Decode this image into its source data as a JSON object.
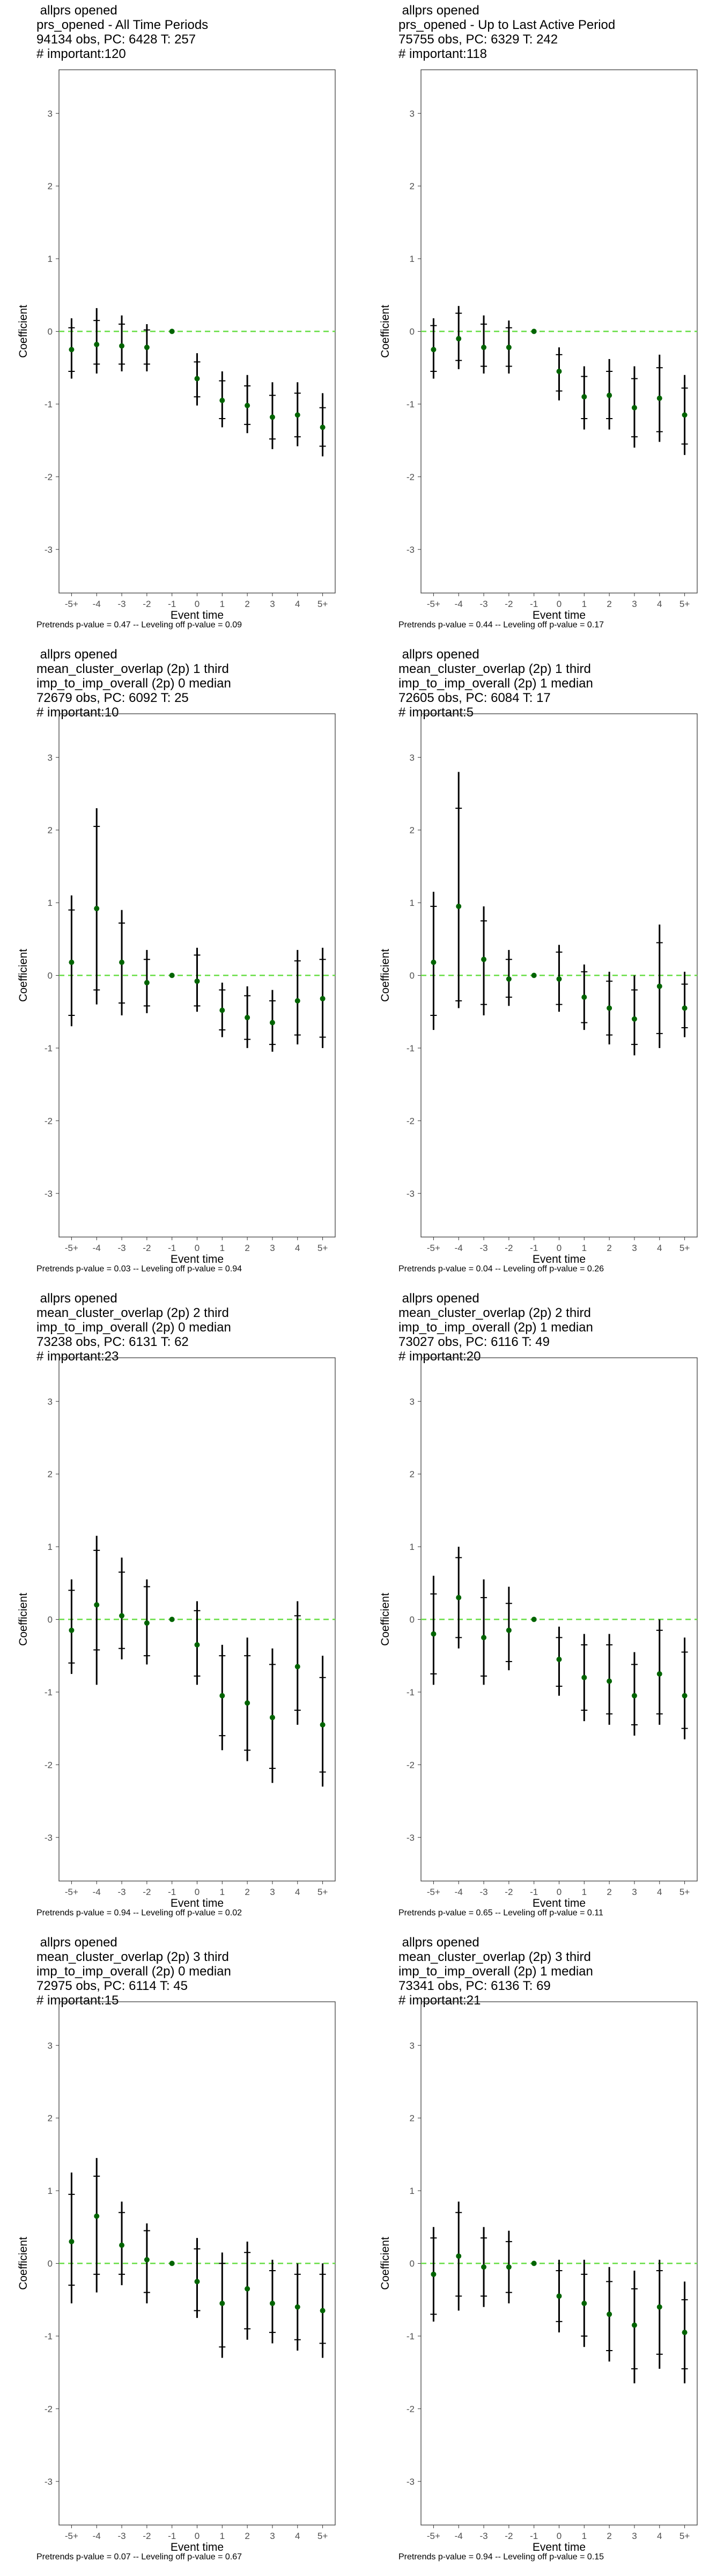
{
  "chart_data": [
    {
      "type": "scatter",
      "title_lines": [
        "allprs opened",
        "prs_opened - All Time Periods",
        "94134 obs, PC: 6428 T: 257",
        "# important:120"
      ],
      "xlabel": "Event time",
      "ylabel": "Coefficient",
      "categories": [
        "-5+",
        "-4",
        "-3",
        "-2",
        "-1",
        "0",
        "1",
        "2",
        "3",
        "4",
        "5+"
      ],
      "ylim": [
        -3.6,
        3.6
      ],
      "yticks": [
        -3,
        -2,
        -1,
        0,
        1,
        2,
        3
      ],
      "coef": [
        -0.25,
        -0.18,
        -0.2,
        -0.22,
        0.0,
        -0.65,
        -0.95,
        -1.02,
        -1.18,
        -1.15,
        -1.32
      ],
      "ci_low": [
        -0.65,
        -0.58,
        -0.55,
        -0.55,
        0.0,
        -1.02,
        -1.32,
        -1.4,
        -1.62,
        -1.58,
        -1.72
      ],
      "ci_high": [
        0.18,
        0.32,
        0.22,
        0.1,
        0.0,
        -0.3,
        -0.55,
        -0.6,
        -0.7,
        -0.7,
        -0.85
      ],
      "inner_low": [
        -0.55,
        -0.45,
        -0.45,
        -0.45,
        0.0,
        -0.9,
        -1.2,
        -1.28,
        -1.48,
        -1.45,
        -1.58
      ],
      "inner_high": [
        0.05,
        0.15,
        0.1,
        0.02,
        0.0,
        -0.42,
        -0.68,
        -0.75,
        -0.88,
        -0.85,
        -1.05
      ],
      "footer": "Pretrends p-value = 0.47 -- Leveling off p-value = 0.09"
    },
    {
      "type": "scatter",
      "title_lines": [
        "allprs opened",
        "prs_opened - Up to Last Active Period",
        "75755 obs, PC: 6329 T: 242",
        "# important:118"
      ],
      "xlabel": "Event time",
      "ylabel": "Coefficient",
      "categories": [
        "-5+",
        "-4",
        "-3",
        "-2",
        "-1",
        "0",
        "1",
        "2",
        "3",
        "4",
        "5+"
      ],
      "ylim": [
        -3.6,
        3.6
      ],
      "yticks": [
        -3,
        -2,
        -1,
        0,
        1,
        2,
        3
      ],
      "coef": [
        -0.25,
        -0.1,
        -0.22,
        -0.22,
        0.0,
        -0.55,
        -0.9,
        -0.88,
        -1.05,
        -0.92,
        -1.15
      ],
      "ci_low": [
        -0.65,
        -0.52,
        -0.58,
        -0.58,
        0.0,
        -0.95,
        -1.35,
        -1.35,
        -1.6,
        -1.52,
        -1.7
      ],
      "ci_high": [
        0.18,
        0.35,
        0.22,
        0.15,
        0.0,
        -0.22,
        -0.48,
        -0.38,
        -0.48,
        -0.32,
        -0.6
      ],
      "inner_low": [
        -0.55,
        -0.4,
        -0.48,
        -0.48,
        0.0,
        -0.82,
        -1.2,
        -1.2,
        -1.45,
        -1.38,
        -1.55
      ],
      "inner_high": [
        0.08,
        0.25,
        0.1,
        0.05,
        0.0,
        -0.32,
        -0.62,
        -0.55,
        -0.65,
        -0.5,
        -0.78
      ],
      "footer": "Pretrends p-value = 0.44 -- Leveling off p-value = 0.17"
    },
    {
      "type": "scatter",
      "title_lines": [
        "allprs opened",
        "mean_cluster_overlap (2p) 1 third",
        "imp_to_imp_overall (2p) 0 median",
        "72679 obs, PC: 6092 T: 25",
        "# important:10"
      ],
      "xlabel": "Event time",
      "ylabel": "Coefficient",
      "categories": [
        "-5+",
        "-4",
        "-3",
        "-2",
        "-1",
        "0",
        "1",
        "2",
        "3",
        "4",
        "5+"
      ],
      "ylim": [
        -3.6,
        3.6
      ],
      "yticks": [
        -3,
        -2,
        -1,
        0,
        1,
        2,
        3
      ],
      "coef": [
        0.18,
        0.92,
        0.18,
        -0.1,
        0.0,
        -0.08,
        -0.48,
        -0.58,
        -0.65,
        -0.35,
        -0.32
      ],
      "ci_low": [
        -0.7,
        -0.4,
        -0.55,
        -0.52,
        0.0,
        -0.5,
        -0.85,
        -1.0,
        -1.05,
        -0.95,
        -1.0
      ],
      "ci_high": [
        1.1,
        2.3,
        0.9,
        0.35,
        0.0,
        0.38,
        -0.1,
        -0.15,
        -0.2,
        0.35,
        0.38
      ],
      "inner_low": [
        -0.55,
        -0.2,
        -0.38,
        -0.42,
        0.0,
        -0.42,
        -0.75,
        -0.88,
        -0.95,
        -0.82,
        -0.85
      ],
      "inner_high": [
        0.9,
        2.05,
        0.72,
        0.22,
        0.0,
        0.28,
        -0.2,
        -0.28,
        -0.35,
        0.2,
        0.22
      ],
      "footer": "Pretrends p-value = 0.03 -- Leveling off p-value = 0.94"
    },
    {
      "type": "scatter",
      "title_lines": [
        "allprs opened",
        "mean_cluster_overlap (2p) 1 third",
        "imp_to_imp_overall (2p) 1 median",
        "72605 obs, PC: 6084 T: 17",
        "# important:5"
      ],
      "xlabel": "Event time",
      "ylabel": "Coefficient",
      "categories": [
        "-5+",
        "-4",
        "-3",
        "-2",
        "-1",
        "0",
        "1",
        "2",
        "3",
        "4",
        "5+"
      ],
      "ylim": [
        -3.6,
        3.6
      ],
      "yticks": [
        -3,
        -2,
        -1,
        0,
        1,
        2,
        3
      ],
      "coef": [
        0.18,
        0.95,
        0.22,
        -0.05,
        0.0,
        -0.05,
        -0.3,
        -0.45,
        -0.6,
        -0.15,
        -0.45
      ],
      "ci_low": [
        -0.75,
        -0.45,
        -0.55,
        -0.42,
        0.0,
        -0.5,
        -0.75,
        -0.95,
        -1.1,
        -1.0,
        -0.85
      ],
      "ci_high": [
        1.15,
        2.8,
        0.95,
        0.35,
        0.0,
        0.42,
        0.15,
        0.05,
        0.0,
        0.7,
        0.05
      ],
      "inner_low": [
        -0.55,
        -0.35,
        -0.4,
        -0.3,
        0.0,
        -0.4,
        -0.65,
        -0.82,
        -0.95,
        -0.8,
        -0.72
      ],
      "inner_high": [
        0.95,
        2.3,
        0.75,
        0.22,
        0.0,
        0.32,
        0.05,
        -0.08,
        -0.2,
        0.45,
        -0.12
      ],
      "footer": "Pretrends p-value = 0.04 -- Leveling off p-value = 0.26"
    },
    {
      "type": "scatter",
      "title_lines": [
        "allprs opened",
        "mean_cluster_overlap (2p) 2 third",
        "imp_to_imp_overall (2p) 0 median",
        "73238 obs, PC: 6131 T: 62",
        "# important:23"
      ],
      "xlabel": "Event time",
      "ylabel": "Coefficient",
      "categories": [
        "-5+",
        "-4",
        "-3",
        "-2",
        "-1",
        "0",
        "1",
        "2",
        "3",
        "4",
        "5+"
      ],
      "ylim": [
        -3.6,
        3.6
      ],
      "yticks": [
        -3,
        -2,
        -1,
        0,
        1,
        2,
        3
      ],
      "coef": [
        -0.15,
        0.2,
        0.05,
        -0.05,
        0.0,
        -0.35,
        -1.05,
        -1.15,
        -1.35,
        -0.65,
        -1.45
      ],
      "ci_low": [
        -0.75,
        -0.9,
        -0.55,
        -0.62,
        0.0,
        -0.9,
        -1.8,
        -1.95,
        -2.25,
        -1.45,
        -2.3
      ],
      "ci_high": [
        0.55,
        1.15,
        0.85,
        0.55,
        0.0,
        0.25,
        -0.35,
        -0.25,
        -0.4,
        0.25,
        -0.5
      ],
      "inner_low": [
        -0.6,
        -0.42,
        -0.4,
        -0.5,
        0.0,
        -0.78,
        -1.6,
        -1.8,
        -2.05,
        -1.25,
        -2.1
      ],
      "inner_high": [
        0.4,
        0.95,
        0.65,
        0.45,
        0.0,
        0.12,
        -0.5,
        -0.5,
        -0.62,
        0.05,
        -0.8
      ],
      "footer": "Pretrends p-value = 0.94 -- Leveling off p-value = 0.02"
    },
    {
      "type": "scatter",
      "title_lines": [
        "allprs opened",
        "mean_cluster_overlap (2p) 2 third",
        "imp_to_imp_overall (2p) 1 median",
        "73027 obs, PC: 6116 T: 49",
        "# important:20"
      ],
      "xlabel": "Event time",
      "ylabel": "Coefficient",
      "categories": [
        "-5+",
        "-4",
        "-3",
        "-2",
        "-1",
        "0",
        "1",
        "2",
        "3",
        "4",
        "5+"
      ],
      "ylim": [
        -3.6,
        3.6
      ],
      "yticks": [
        -3,
        -2,
        -1,
        0,
        1,
        2,
        3
      ],
      "coef": [
        -0.2,
        0.3,
        -0.25,
        -0.15,
        0.0,
        -0.55,
        -0.8,
        -0.85,
        -1.05,
        -0.75,
        -1.05
      ],
      "ci_low": [
        -0.9,
        -0.4,
        -0.9,
        -0.7,
        0.0,
        -1.05,
        -1.4,
        -1.45,
        -1.6,
        -1.45,
        -1.65
      ],
      "ci_high": [
        0.6,
        1.0,
        0.55,
        0.45,
        0.0,
        -0.1,
        -0.2,
        -0.2,
        -0.45,
        0.0,
        -0.25
      ],
      "inner_low": [
        -0.75,
        -0.25,
        -0.78,
        -0.58,
        0.0,
        -0.92,
        -1.25,
        -1.3,
        -1.45,
        -1.3,
        -1.5
      ],
      "inner_high": [
        0.35,
        0.85,
        0.3,
        0.22,
        0.0,
        -0.25,
        -0.35,
        -0.35,
        -0.62,
        -0.15,
        -0.45
      ],
      "footer": "Pretrends p-value = 0.65 -- Leveling off p-value = 0.11"
    },
    {
      "type": "scatter",
      "title_lines": [
        "allprs opened",
        "mean_cluster_overlap (2p) 3 third",
        "imp_to_imp_overall (2p) 0 median",
        "72975 obs, PC: 6114 T: 45",
        "# important:15"
      ],
      "xlabel": "Event time",
      "ylabel": "Coefficient",
      "categories": [
        "-5+",
        "-4",
        "-3",
        "-2",
        "-1",
        "0",
        "1",
        "2",
        "3",
        "4",
        "5+"
      ],
      "ylim": [
        -3.6,
        3.6
      ],
      "yticks": [
        -3,
        -2,
        -1,
        0,
        1,
        2,
        3
      ],
      "coef": [
        0.3,
        0.65,
        0.25,
        0.05,
        0.0,
        -0.25,
        -0.55,
        -0.35,
        -0.55,
        -0.6,
        -0.65
      ],
      "ci_low": [
        -0.55,
        -0.4,
        -0.3,
        -0.55,
        0.0,
        -0.75,
        -1.3,
        -1.05,
        -1.1,
        -1.2,
        -1.3
      ],
      "ci_high": [
        1.25,
        1.45,
        0.85,
        0.55,
        0.0,
        0.35,
        0.15,
        0.3,
        0.05,
        0.0,
        0.0
      ],
      "inner_low": [
        -0.3,
        -0.15,
        -0.15,
        -0.4,
        0.0,
        -0.65,
        -1.15,
        -0.9,
        -0.95,
        -1.05,
        -1.1
      ],
      "inner_high": [
        0.95,
        1.2,
        0.7,
        0.45,
        0.0,
        0.2,
        0.0,
        0.15,
        -0.1,
        -0.15,
        -0.15
      ],
      "footer": "Pretrends p-value = 0.07 -- Leveling off p-value = 0.67"
    },
    {
      "type": "scatter",
      "title_lines": [
        "allprs opened",
        "mean_cluster_overlap (2p) 3 third",
        "imp_to_imp_overall (2p) 1 median",
        "73341 obs, PC: 6136 T: 69",
        "# important:21"
      ],
      "xlabel": "Event time",
      "ylabel": "Coefficient",
      "categories": [
        "-5+",
        "-4",
        "-3",
        "-2",
        "-1",
        "0",
        "1",
        "2",
        "3",
        "4",
        "5+"
      ],
      "ylim": [
        -3.6,
        3.6
      ],
      "yticks": [
        -3,
        -2,
        -1,
        0,
        1,
        2,
        3
      ],
      "coef": [
        -0.15,
        0.1,
        -0.05,
        -0.05,
        0.0,
        -0.45,
        -0.55,
        -0.7,
        -0.85,
        -0.6,
        -0.95
      ],
      "ci_low": [
        -0.8,
        -0.65,
        -0.6,
        -0.55,
        0.0,
        -0.95,
        -1.15,
        -1.35,
        -1.65,
        -1.45,
        -1.65
      ],
      "ci_high": [
        0.5,
        0.85,
        0.5,
        0.45,
        0.0,
        0.05,
        0.05,
        -0.05,
        -0.1,
        0.05,
        -0.25
      ],
      "inner_low": [
        -0.7,
        -0.45,
        -0.45,
        -0.4,
        0.0,
        -0.8,
        -1.0,
        -1.2,
        -1.45,
        -1.25,
        -1.45
      ],
      "inner_high": [
        0.35,
        0.7,
        0.35,
        0.3,
        0.0,
        -0.1,
        -0.15,
        -0.25,
        -0.35,
        -0.1,
        -0.5
      ],
      "footer": "Pretrends p-value = 0.94 -- Leveling off p-value = 0.15"
    }
  ],
  "colors": {
    "point": "#006400",
    "ci": "#000000",
    "zero_line": "#66dd44",
    "axis_text": "#4d4d4d"
  }
}
